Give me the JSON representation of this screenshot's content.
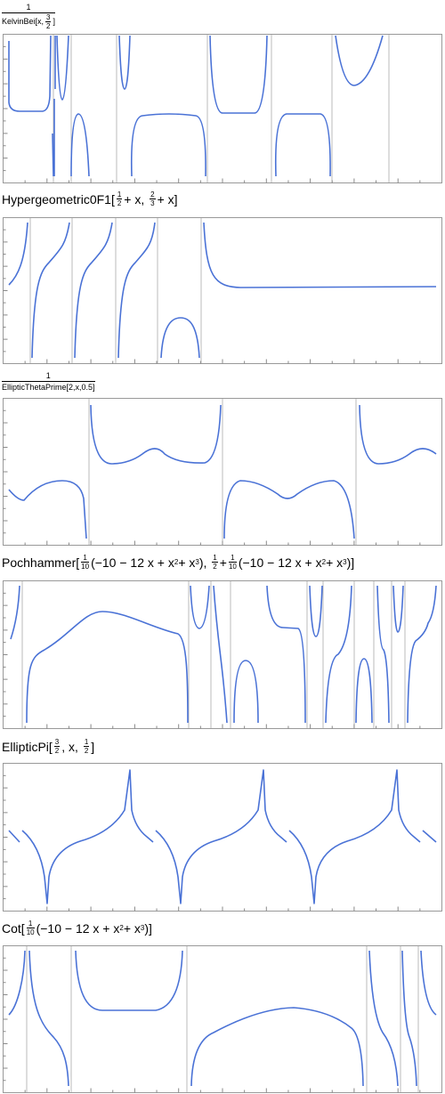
{
  "panels": [
    {
      "title": [
        "1",
        "KelvinBei[x,",
        "3",
        "2",
        "]"
      ]
    },
    {
      "title": [
        "Hypergeometric0F1[",
        "1",
        "2",
        "+ x,",
        "2",
        "3",
        "+ x",
        "]"
      ]
    },
    {
      "title": [
        "1",
        "EllipticThetaPrime[2,x,0.5]"
      ]
    },
    {
      "title": [
        "Pochhammer[",
        "1",
        "10",
        "(−10 − 12 x + x",
        "2",
        " + x",
        "3",
        "),",
        "1",
        "2",
        "+",
        "1",
        "10",
        "(−10 − 12 x + x",
        "2",
        " + x",
        "3",
        ")",
        "]"
      ]
    },
    {
      "title": [
        "EllipticPi[",
        "3",
        "2",
        ", x,",
        "1",
        "2",
        "]"
      ]
    },
    {
      "title": [
        "Cot[",
        "1",
        "10",
        "(−10 − 12 x + x",
        "2",
        " + x",
        "3",
        ")",
        "]"
      ]
    }
  ]
}
